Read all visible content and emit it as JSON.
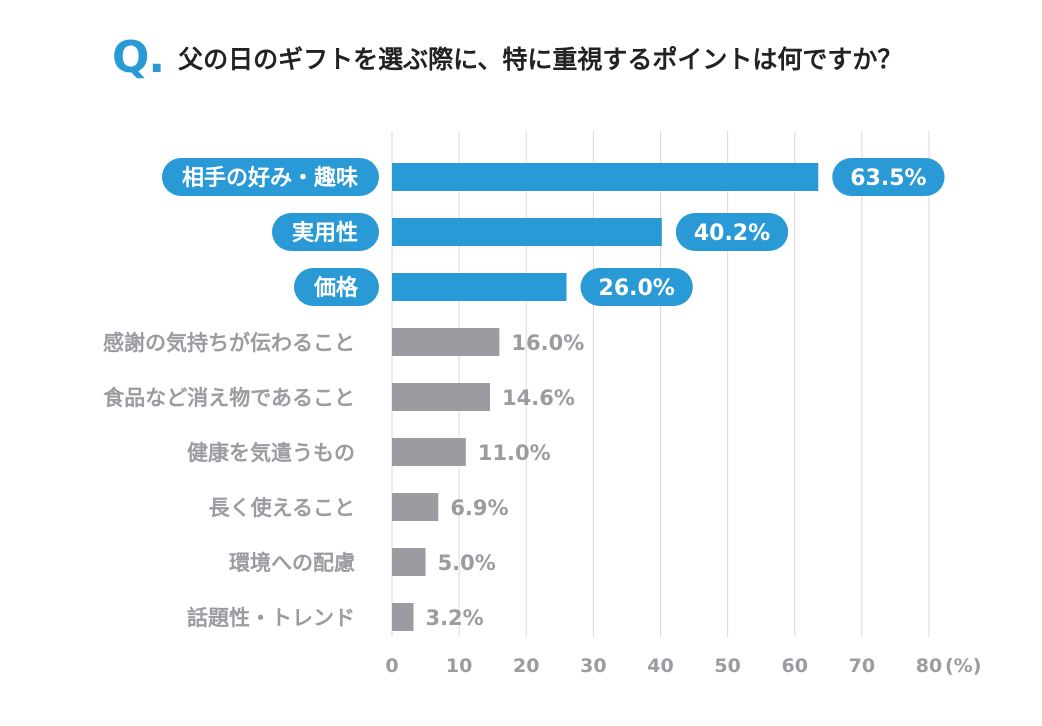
{
  "question": {
    "mark": "Q.",
    "text": "父の日のギフトを選ぶ際に、特に重視するポイントは何ですか？"
  },
  "colors": {
    "highlight": "#2a9ad6",
    "normal": "#9b9ca1",
    "normal_text": "#9b9ca1",
    "grid": "#d9dadd",
    "white": "#ffffff"
  },
  "chart_data": {
    "type": "bar",
    "orientation": "horizontal",
    "categories": [
      "相手の好み・趣味",
      "実用性",
      "価格",
      "感謝の気持ちが伝わること",
      "食品など消え物であること",
      "健康を気遣うもの",
      "長く使えること",
      "環境への配慮",
      "話題性・トレンド"
    ],
    "values": [
      63.5,
      40.2,
      26.0,
      16.0,
      14.6,
      11.0,
      6.9,
      5.0,
      3.2
    ],
    "value_labels": [
      "63.5%",
      "40.2%",
      "26.0%",
      "16.0%",
      "14.6%",
      "11.0%",
      "6.9%",
      "5.0%",
      "3.2%"
    ],
    "highlighted": [
      true,
      true,
      true,
      false,
      false,
      false,
      false,
      false,
      false
    ],
    "xlim": [
      0,
      80
    ],
    "x_ticks": [
      "0",
      "10",
      "20",
      "30",
      "40",
      "50",
      "60",
      "70",
      "80"
    ],
    "x_unit": "(%)",
    "grid": true
  }
}
